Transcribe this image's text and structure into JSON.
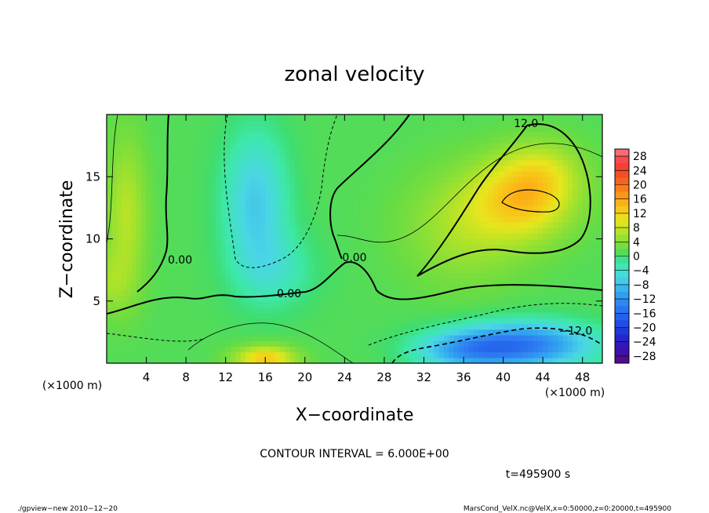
{
  "chart_data": {
    "type": "heatmap",
    "title": "zonal velocity",
    "xlabel": "X−coordinate",
    "ylabel": "Z−coordinate",
    "x_unit": "(×1000 m)",
    "y_unit": "(×1000 m)",
    "xlim": [
      0,
      50
    ],
    "ylim": [
      0,
      20
    ],
    "x_ticks": [
      4,
      8,
      12,
      16,
      20,
      24,
      28,
      32,
      36,
      40,
      44,
      48
    ],
    "y_ticks": [
      5,
      10,
      15
    ],
    "colorbar_ticks": [
      28,
      24,
      20,
      16,
      12,
      8,
      4,
      0,
      -4,
      -8,
      -12,
      -16,
      -20,
      -24,
      -28
    ],
    "colorbar_labels": [
      "28",
      "24",
      "20",
      "16",
      "12",
      "8",
      "4",
      "0",
      "−4",
      "−8",
      "−12",
      "−16",
      "−20",
      "−24",
      "−28"
    ],
    "value_range": [
      -30,
      30
    ],
    "features": [
      {
        "x": 42,
        "z": 13.2,
        "sx": 5,
        "sz": 3.2,
        "value": 11
      },
      {
        "x": 36,
        "z": 11.0,
        "sx": 6,
        "sz": 4.5,
        "value": 5
      },
      {
        "x": 44,
        "z": 15.5,
        "sx": 4,
        "sz": 2.5,
        "value": 5
      },
      {
        "x": 15,
        "z": 13.0,
        "sx": 3.2,
        "sz": 5.5,
        "value": -8
      },
      {
        "x": 17,
        "z": 7.5,
        "sx": 4,
        "sz": 3,
        "value": -4
      },
      {
        "x": 42,
        "z": 1.5,
        "sx": 7,
        "sz": 1.8,
        "value": -15
      },
      {
        "x": 36,
        "z": 1.0,
        "sx": 5,
        "sz": 1.5,
        "value": -8
      },
      {
        "x": 16,
        "z": 0.4,
        "sx": 3,
        "sz": 1,
        "value": 12
      },
      {
        "x": 2,
        "z": 12.0,
        "sx": 2,
        "sz": 6,
        "value": 6
      },
      {
        "x": 0,
        "z": 6.5,
        "sx": 2.5,
        "sz": 2.5,
        "value": 4
      }
    ],
    "background_value": 1,
    "contour_labels": [
      {
        "text": "12.0",
        "x": 42.3,
        "z": 19.0
      },
      {
        "text": "−12.0",
        "x": 47.3,
        "z": 2.3
      },
      {
        "text": "0.00",
        "x": 18.4,
        "z": 5.3
      },
      {
        "text": "0.00",
        "x": 25.0,
        "z": 8.2
      },
      {
        "text": "0.00",
        "x": 7.4,
        "z": 8.0
      }
    ],
    "annotation": "CONTOUR INTERVAL = 6.000E+00",
    "time_label": "t=495900 s"
  },
  "footer": {
    "left": "./gpview−new   2010−12−20",
    "right": "MarsCond_VelX.nc@VelX,x=0:50000,z=0:20000,t=495900"
  }
}
